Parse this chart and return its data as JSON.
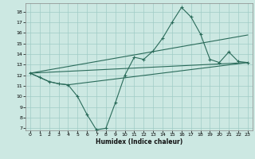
{
  "xlabel": "Humidex (Indice chaleur)",
  "xlim": [
    -0.5,
    23.5
  ],
  "ylim": [
    6.8,
    18.8
  ],
  "yticks": [
    7,
    8,
    9,
    10,
    11,
    12,
    13,
    14,
    15,
    16,
    17,
    18
  ],
  "xticks": [
    0,
    1,
    2,
    3,
    4,
    5,
    6,
    7,
    8,
    9,
    10,
    11,
    12,
    13,
    14,
    15,
    16,
    17,
    18,
    19,
    20,
    21,
    22,
    23
  ],
  "line_color": "#2a6b5a",
  "bg_color": "#cce8e2",
  "grid_color": "#a0ccc6",
  "main_line_x": [
    0,
    1,
    2,
    3,
    4,
    5,
    6,
    7,
    8,
    9,
    10,
    11,
    12,
    13,
    14,
    15,
    16,
    17,
    18,
    19,
    20,
    21,
    22,
    23
  ],
  "main_line_y": [
    12.2,
    11.8,
    11.4,
    11.2,
    11.1,
    10.0,
    8.3,
    6.85,
    7.0,
    9.4,
    12.0,
    13.7,
    13.5,
    14.3,
    15.5,
    17.0,
    18.4,
    17.5,
    15.9,
    13.5,
    13.2,
    14.2,
    13.3,
    13.2
  ],
  "extra_lines": [
    {
      "x": [
        0,
        1,
        2,
        3,
        4,
        23
      ],
      "y": [
        12.2,
        11.8,
        11.4,
        11.2,
        11.1,
        13.2
      ]
    },
    {
      "x": [
        0,
        23
      ],
      "y": [
        12.2,
        15.8
      ]
    },
    {
      "x": [
        0,
        23
      ],
      "y": [
        12.2,
        13.2
      ]
    }
  ]
}
